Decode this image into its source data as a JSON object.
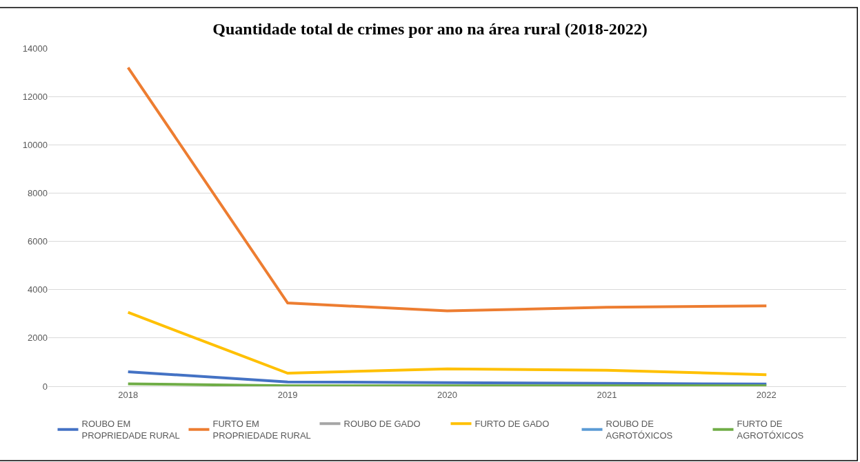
{
  "chart_data": {
    "type": "line",
    "title": "Quantidade total de crimes por ano na área rural (2018-2022)",
    "categories": [
      "2018",
      "2019",
      "2020",
      "2021",
      "2022"
    ],
    "series": [
      {
        "name": "ROUBO EM PROPRIEDADE RURAL",
        "color": "#4472c4",
        "values": [
          600,
          180,
          150,
          120,
          90
        ]
      },
      {
        "name": "FURTO EM PROPRIEDADE RURAL",
        "color": "#ed7d31",
        "values": [
          13200,
          3450,
          3120,
          3270,
          3330
        ]
      },
      {
        "name": "ROUBO DE GADO",
        "color": "#a5a5a5",
        "values": [
          null,
          null,
          null,
          null,
          null
        ]
      },
      {
        "name": "FURTO DE GADO",
        "color": "#ffc000",
        "values": [
          3060,
          540,
          720,
          660,
          480
        ]
      },
      {
        "name": "ROUBO DE AGROTÓXICOS",
        "color": "#5b9bd5",
        "values": [
          null,
          null,
          null,
          null,
          null
        ]
      },
      {
        "name": "FURTO DE AGROTÓXICOS",
        "color": "#70ad47",
        "values": [
          100,
          20,
          20,
          20,
          20
        ]
      }
    ],
    "ylim": [
      0,
      14000
    ],
    "yticks": [
      0,
      2000,
      4000,
      6000,
      8000,
      10000,
      12000,
      14000
    ],
    "grid": "y",
    "legend": "bottom",
    "marker": "none",
    "line_style": "solid"
  }
}
